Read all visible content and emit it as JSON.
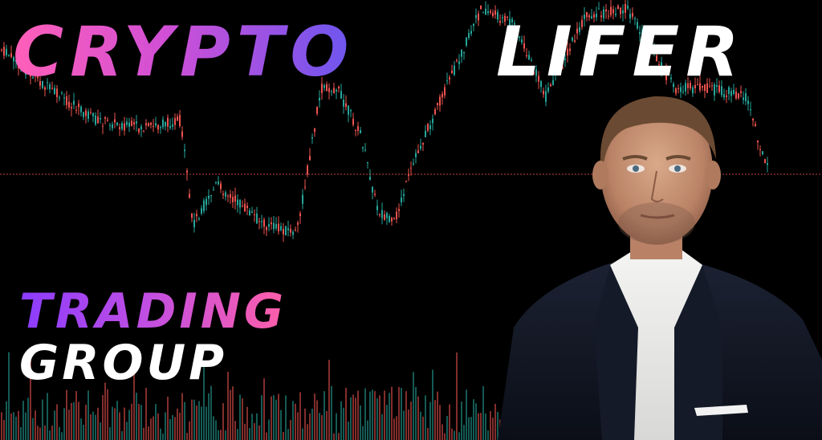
{
  "banner": {
    "title_part1": "CRYPTO",
    "title_part2": "LIFER",
    "subtitle_line1": "TRADING",
    "subtitle_line2": "GROUP"
  },
  "colors": {
    "background": "#000000",
    "candle_up": "#26a69a",
    "candle_down": "#ef5350",
    "gradient_pink": "#ff5fb8",
    "gradient_purple": "#6a56f0",
    "title_white": "#ffffff"
  },
  "decor": {
    "background_chart": "candlestick-chart-with-volume-bars",
    "photo": "portrait-of-man-in-navy-suit-and-white-shirt"
  }
}
